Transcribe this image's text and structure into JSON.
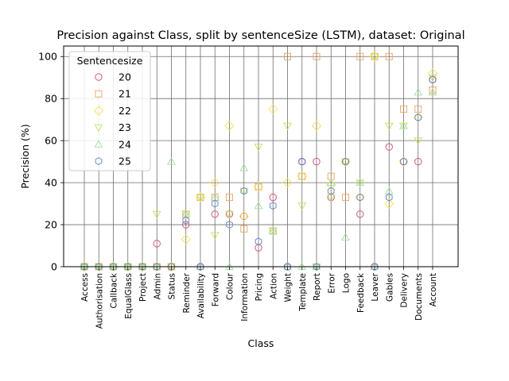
{
  "chart_data": {
    "type": "scatter",
    "title": "Precision against Class, split by sentenceSize (LSTM), dataset: Original",
    "xlabel": "Class",
    "ylabel": "Precision (%)",
    "ylim": [
      0,
      105
    ],
    "yticks": [
      0,
      20,
      40,
      60,
      80,
      100
    ],
    "grid": true,
    "legend": {
      "title": "Sentencesize",
      "placement": "top-left"
    },
    "categories": [
      "Access",
      "Authorisation",
      "Callback",
      "EqualGlass",
      "Project",
      "Admin",
      "Status",
      "Reminder",
      "Availability",
      "Forward",
      "Colour",
      "Information",
      "Pricing",
      "Action",
      "Weight",
      "Template",
      "Report",
      "Error",
      "Logo",
      "Feedback",
      "Leaver",
      "Gables",
      "Delivery",
      "Documents",
      "Account"
    ],
    "series": [
      {
        "name": "20",
        "color": "#d6476b",
        "marker": "circle",
        "values": [
          0,
          0,
          0,
          0,
          0,
          11,
          0,
          20,
          0,
          25,
          25,
          24,
          9,
          33,
          0,
          50,
          50,
          33,
          50,
          25,
          0,
          57,
          50,
          50,
          89
        ]
      },
      {
        "name": "21",
        "color": "#f2a05a",
        "marker": "square",
        "values": [
          0,
          0,
          0,
          0,
          0,
          0,
          0,
          25,
          33,
          33,
          33,
          18,
          38,
          17,
          100,
          43,
          100,
          43,
          33,
          100,
          100,
          100,
          75,
          75,
          84
        ]
      },
      {
        "name": "22",
        "color": "#f5e04a",
        "marker": "diamond",
        "values": [
          0,
          0,
          0,
          0,
          0,
          0,
          0,
          13,
          33,
          40,
          67,
          24,
          38,
          75,
          40,
          43,
          67,
          39,
          50,
          33,
          100,
          30,
          50,
          71,
          92
        ]
      },
      {
        "name": "23",
        "color": "#c2e05a",
        "marker": "triangle-down",
        "values": [
          0,
          0,
          0,
          0,
          0,
          25,
          0,
          25,
          33,
          15,
          25,
          36,
          57,
          17,
          67,
          29,
          0,
          33,
          50,
          40,
          100,
          67,
          67,
          60,
          90
        ]
      },
      {
        "name": "24",
        "color": "#9fdf9f",
        "marker": "triangle-up",
        "values": [
          0,
          0,
          0,
          0,
          0,
          0,
          50,
          25,
          0,
          33,
          0,
          47,
          29,
          17,
          0,
          0,
          0,
          40,
          14,
          40,
          0,
          36,
          67,
          83,
          83
        ]
      },
      {
        "name": "25",
        "color": "#6080c8",
        "marker": "hexagon",
        "values": [
          0,
          0,
          0,
          0,
          0,
          0,
          0,
          22,
          0,
          30,
          20,
          36,
          12,
          29,
          0,
          50,
          0,
          36,
          50,
          33,
          0,
          33,
          50,
          71,
          89
        ]
      }
    ]
  }
}
